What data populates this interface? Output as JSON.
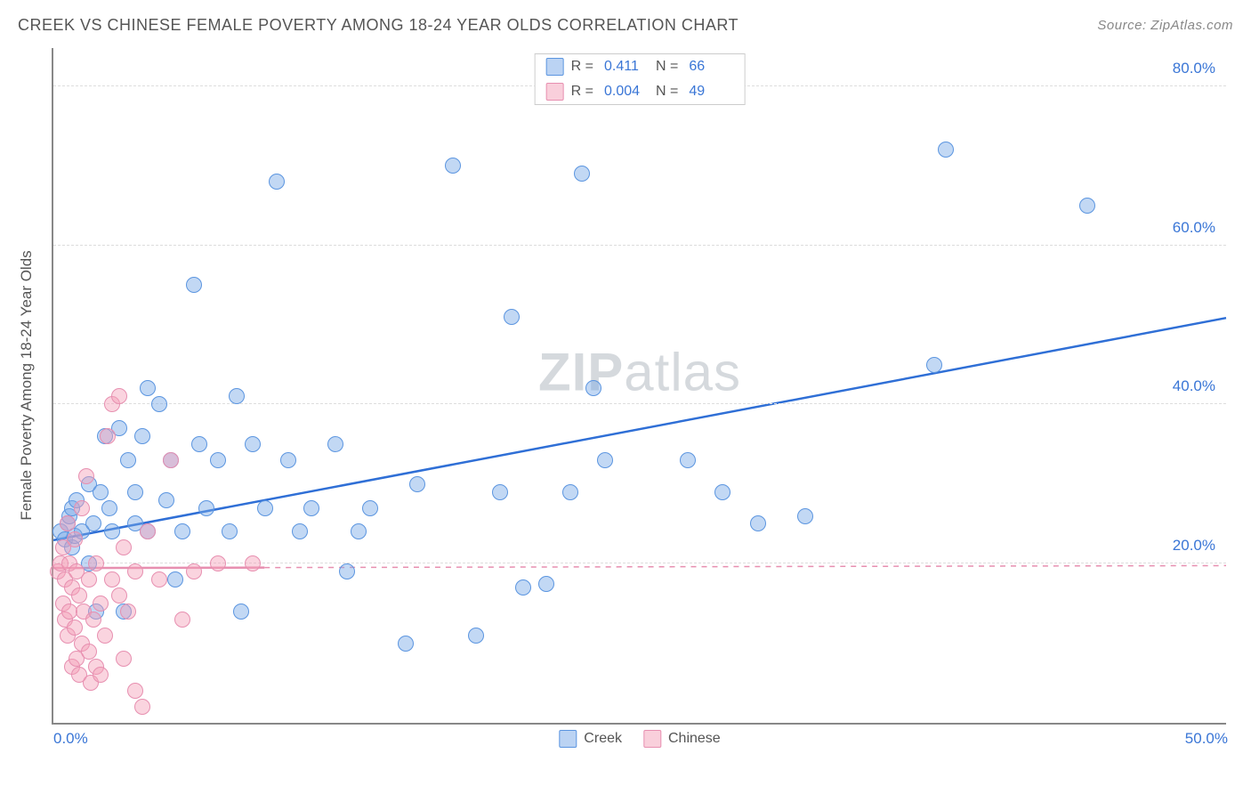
{
  "title": "CREEK VS CHINESE FEMALE POVERTY AMONG 18-24 YEAR OLDS CORRELATION CHART",
  "source_label": "Source:",
  "source_name": "ZipAtlas.com",
  "watermark": "ZIPatlas",
  "chart": {
    "type": "scatter",
    "xlim": [
      0,
      50
    ],
    "ylim": [
      0,
      85
    ],
    "xticks": [
      {
        "v": 0,
        "label": "0.0%"
      },
      {
        "v": 50,
        "label": "50.0%"
      }
    ],
    "yticks": [
      {
        "v": 20,
        "label": "20.0%"
      },
      {
        "v": 40,
        "label": "40.0%"
      },
      {
        "v": 60,
        "label": "60.0%"
      },
      {
        "v": 80,
        "label": "80.0%"
      }
    ],
    "ylabel": "Female Poverty Among 18-24 Year Olds",
    "grid_color": "#dddddd",
    "axis_color": "#888888",
    "background_color": "#ffffff",
    "marker_radius": 9,
    "series": [
      {
        "name": "Creek",
        "color_fill": "rgba(119,168,231,0.45)",
        "color_stroke": "#5b95e0",
        "R": 0.411,
        "N": 66,
        "trend": {
          "x1": 0,
          "y1": 23,
          "x2": 50,
          "y2": 51,
          "dash": false,
          "color": "#2f6fd6",
          "width": 2.5
        },
        "points": [
          [
            0.3,
            24
          ],
          [
            0.5,
            23
          ],
          [
            0.6,
            25
          ],
          [
            0.7,
            26
          ],
          [
            0.8,
            22
          ],
          [
            0.8,
            27
          ],
          [
            0.9,
            23.5
          ],
          [
            1.0,
            28
          ],
          [
            1.2,
            24
          ],
          [
            1.5,
            30
          ],
          [
            1.5,
            20
          ],
          [
            1.7,
            25
          ],
          [
            1.8,
            14
          ],
          [
            2.0,
            29
          ],
          [
            2.2,
            36
          ],
          [
            2.4,
            27
          ],
          [
            2.5,
            24
          ],
          [
            2.8,
            37
          ],
          [
            3.0,
            14
          ],
          [
            3.2,
            33
          ],
          [
            3.5,
            25
          ],
          [
            3.5,
            29
          ],
          [
            3.8,
            36
          ],
          [
            4.0,
            42
          ],
          [
            4.0,
            24
          ],
          [
            4.5,
            40
          ],
          [
            4.8,
            28
          ],
          [
            5.0,
            33
          ],
          [
            5.2,
            18
          ],
          [
            5.5,
            24
          ],
          [
            6.0,
            55
          ],
          [
            6.2,
            35
          ],
          [
            6.5,
            27
          ],
          [
            7.0,
            33
          ],
          [
            7.5,
            24
          ],
          [
            7.8,
            41
          ],
          [
            8.0,
            14
          ],
          [
            8.5,
            35
          ],
          [
            9.0,
            27
          ],
          [
            9.5,
            68
          ],
          [
            10.0,
            33
          ],
          [
            10.5,
            24
          ],
          [
            11.0,
            27
          ],
          [
            12.0,
            35
          ],
          [
            12.5,
            19
          ],
          [
            13.0,
            24
          ],
          [
            13.5,
            27
          ],
          [
            15.0,
            10
          ],
          [
            15.5,
            30
          ],
          [
            17.0,
            70
          ],
          [
            18.0,
            11
          ],
          [
            19.0,
            29
          ],
          [
            19.5,
            51
          ],
          [
            20.0,
            17
          ],
          [
            21.0,
            17.5
          ],
          [
            22.0,
            29
          ],
          [
            22.5,
            69
          ],
          [
            23.0,
            42
          ],
          [
            23.5,
            33
          ],
          [
            27.0,
            33
          ],
          [
            28.5,
            29
          ],
          [
            30.0,
            25
          ],
          [
            32.0,
            26
          ],
          [
            37.5,
            45
          ],
          [
            38.0,
            72
          ],
          [
            44.0,
            65
          ]
        ]
      },
      {
        "name": "Chinese",
        "color_fill": "rgba(244,160,184,0.45)",
        "color_stroke": "#e78fb0",
        "R": 0.004,
        "N": 49,
        "trend": {
          "x1": 0,
          "y1": 19.5,
          "x2": 50,
          "y2": 19.8,
          "dash": true,
          "color": "#e78fb0",
          "width": 1.5,
          "solid_until": 9
        },
        "points": [
          [
            0.2,
            19
          ],
          [
            0.3,
            20
          ],
          [
            0.4,
            15
          ],
          [
            0.4,
            22
          ],
          [
            0.5,
            13
          ],
          [
            0.5,
            18
          ],
          [
            0.6,
            11
          ],
          [
            0.6,
            25
          ],
          [
            0.7,
            14
          ],
          [
            0.7,
            20
          ],
          [
            0.8,
            7
          ],
          [
            0.8,
            17
          ],
          [
            0.9,
            12
          ],
          [
            0.9,
            23
          ],
          [
            1.0,
            8
          ],
          [
            1.0,
            19
          ],
          [
            1.1,
            6
          ],
          [
            1.1,
            16
          ],
          [
            1.2,
            10
          ],
          [
            1.2,
            27
          ],
          [
            1.3,
            14
          ],
          [
            1.4,
            31
          ],
          [
            1.5,
            9
          ],
          [
            1.5,
            18
          ],
          [
            1.6,
            5
          ],
          [
            1.7,
            13
          ],
          [
            1.8,
            7
          ],
          [
            1.8,
            20
          ],
          [
            2.0,
            6
          ],
          [
            2.0,
            15
          ],
          [
            2.2,
            11
          ],
          [
            2.3,
            36
          ],
          [
            2.5,
            18
          ],
          [
            2.5,
            40
          ],
          [
            2.8,
            16
          ],
          [
            2.8,
            41
          ],
          [
            3.0,
            8
          ],
          [
            3.0,
            22
          ],
          [
            3.2,
            14
          ],
          [
            3.5,
            4
          ],
          [
            3.5,
            19
          ],
          [
            3.8,
            2
          ],
          [
            4.0,
            24
          ],
          [
            4.5,
            18
          ],
          [
            5.0,
            33
          ],
          [
            5.5,
            13
          ],
          [
            6.0,
            19
          ],
          [
            7.0,
            20
          ],
          [
            8.5,
            20
          ]
        ]
      }
    ],
    "legend_top": {
      "rows": [
        {
          "swatch": "blue",
          "R": "0.411",
          "N": "66"
        },
        {
          "swatch": "pink",
          "R": "0.004",
          "N": "49"
        }
      ]
    },
    "legend_bottom": [
      {
        "swatch": "blue",
        "label": "Creek"
      },
      {
        "swatch": "pink",
        "label": "Chinese"
      }
    ]
  }
}
